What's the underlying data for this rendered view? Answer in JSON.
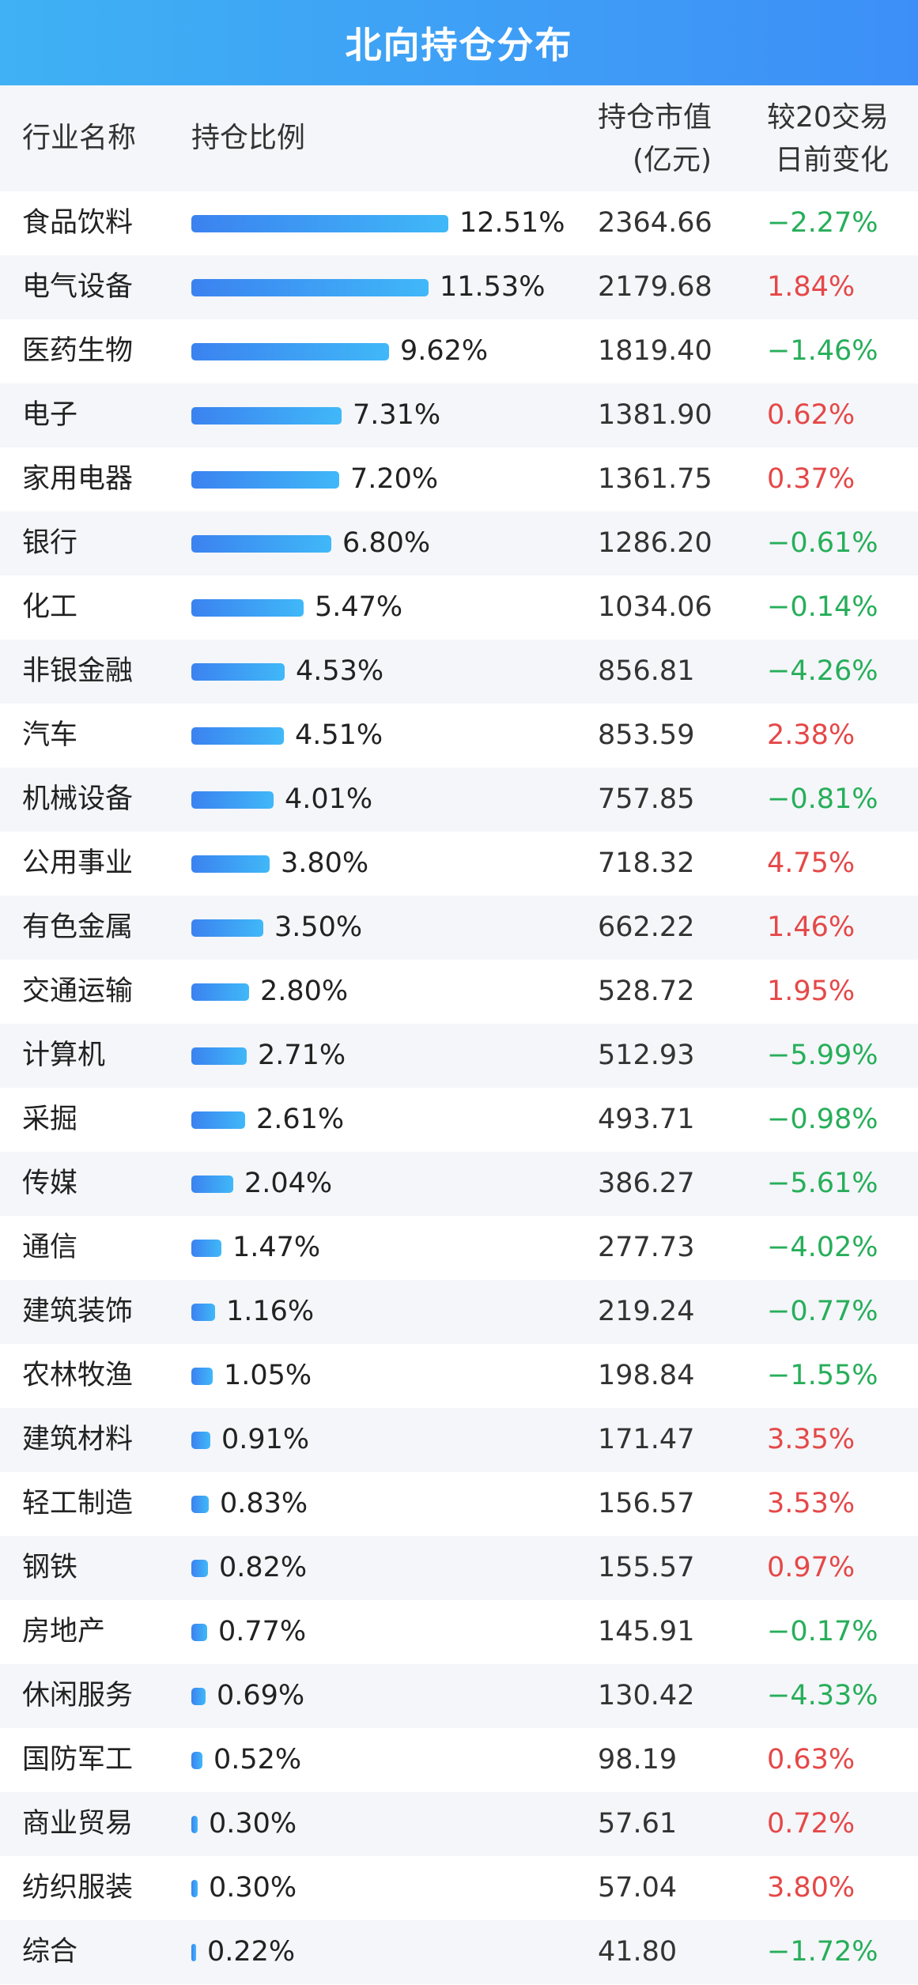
{
  "title": "北向持仓分布",
  "header": {
    "col_name": "行业名称",
    "col_ratio": "持仓比例",
    "col_value_l1": "持仓市值",
    "col_value_l2": "(亿元)",
    "col_change_l1": "较20交易",
    "col_change_l2": "日前变化"
  },
  "colors": {
    "title_bg": "#3d9af6",
    "bar": "#3b8ff4",
    "positive": "#e54848",
    "negative": "#27ae5a",
    "row_alt": "#f4f6f9"
  },
  "chart_data": {
    "type": "bar",
    "title": "北向持仓分布",
    "categories": [
      "食品饮料",
      "电气设备",
      "医药生物",
      "电子",
      "家用电器",
      "银行",
      "化工",
      "非银金融",
      "汽车",
      "机械设备",
      "公用事业",
      "有色金属",
      "交通运输",
      "计算机",
      "采掘",
      "传媒",
      "通信",
      "建筑装饰",
      "农林牧渔",
      "建筑材料",
      "轻工制造",
      "钢铁",
      "房地产",
      "休闲服务",
      "国防军工",
      "商业贸易",
      "纺织服装",
      "综合"
    ],
    "series": [
      {
        "name": "持仓比例",
        "values": [
          12.51,
          11.53,
          9.62,
          7.31,
          7.2,
          6.8,
          5.47,
          4.53,
          4.51,
          4.01,
          3.8,
          3.5,
          2.8,
          2.71,
          2.61,
          2.04,
          1.47,
          1.16,
          1.05,
          0.91,
          0.83,
          0.82,
          0.77,
          0.69,
          0.52,
          0.3,
          0.3,
          0.22
        ]
      },
      {
        "name": "持仓市值(亿元)",
        "values": [
          2364.66,
          2179.68,
          1819.4,
          1381.9,
          1361.75,
          1286.2,
          1034.06,
          856.81,
          853.59,
          757.85,
          718.32,
          662.22,
          528.72,
          512.93,
          493.71,
          386.27,
          277.73,
          219.24,
          198.84,
          171.47,
          156.57,
          155.57,
          145.91,
          130.42,
          98.19,
          57.61,
          57.04,
          41.8
        ]
      },
      {
        "name": "较20交易日前变化",
        "values": [
          -2.27,
          1.84,
          -1.46,
          0.62,
          0.37,
          -0.61,
          -0.14,
          -4.26,
          2.38,
          -0.81,
          4.75,
          1.46,
          1.95,
          -5.99,
          -0.98,
          -5.61,
          -4.02,
          -0.77,
          -1.55,
          3.35,
          3.53,
          0.97,
          -0.17,
          -4.33,
          0.63,
          0.72,
          3.8,
          -1.72
        ]
      }
    ],
    "rows": [
      {
        "name": "食品饮料",
        "ratio": "12.51%",
        "value": "2364.66",
        "change": "−2.27%"
      },
      {
        "name": "电气设备",
        "ratio": "11.53%",
        "value": "2179.68",
        "change": "1.84%"
      },
      {
        "name": "医药生物",
        "ratio": "9.62%",
        "value": "1819.40",
        "change": "−1.46%"
      },
      {
        "name": "电子",
        "ratio": "7.31%",
        "value": "1381.90",
        "change": "0.62%"
      },
      {
        "name": "家用电器",
        "ratio": "7.20%",
        "value": "1361.75",
        "change": "0.37%"
      },
      {
        "name": "银行",
        "ratio": "6.80%",
        "value": "1286.20",
        "change": "−0.61%"
      },
      {
        "name": "化工",
        "ratio": "5.47%",
        "value": "1034.06",
        "change": "−0.14%"
      },
      {
        "name": "非银金融",
        "ratio": "4.53%",
        "value": "856.81",
        "change": "−4.26%"
      },
      {
        "name": "汽车",
        "ratio": "4.51%",
        "value": "853.59",
        "change": "2.38%"
      },
      {
        "name": "机械设备",
        "ratio": "4.01%",
        "value": "757.85",
        "change": "−0.81%"
      },
      {
        "name": "公用事业",
        "ratio": "3.80%",
        "value": "718.32",
        "change": "4.75%"
      },
      {
        "name": "有色金属",
        "ratio": "3.50%",
        "value": "662.22",
        "change": "1.46%"
      },
      {
        "name": "交通运输",
        "ratio": "2.80%",
        "value": "528.72",
        "change": "1.95%"
      },
      {
        "name": "计算机",
        "ratio": "2.71%",
        "value": "512.93",
        "change": "−5.99%"
      },
      {
        "name": "采掘",
        "ratio": "2.61%",
        "value": "493.71",
        "change": "−0.98%"
      },
      {
        "name": "传媒",
        "ratio": "2.04%",
        "value": "386.27",
        "change": "−5.61%"
      },
      {
        "name": "通信",
        "ratio": "1.47%",
        "value": "277.73",
        "change": "−4.02%"
      },
      {
        "name": "建筑装饰",
        "ratio": "1.16%",
        "value": "219.24",
        "change": "−0.77%"
      },
      {
        "name": "农林牧渔",
        "ratio": "1.05%",
        "value": "198.84",
        "change": "−1.55%"
      },
      {
        "name": "建筑材料",
        "ratio": "0.91%",
        "value": "171.47",
        "change": "3.35%"
      },
      {
        "name": "轻工制造",
        "ratio": "0.83%",
        "value": "156.57",
        "change": "3.53%"
      },
      {
        "name": "钢铁",
        "ratio": "0.82%",
        "value": "155.57",
        "change": "0.97%"
      },
      {
        "name": "房地产",
        "ratio": "0.77%",
        "value": "145.91",
        "change": "−0.17%"
      },
      {
        "name": "休闲服务",
        "ratio": "0.69%",
        "value": "130.42",
        "change": "−4.33%"
      },
      {
        "name": "国防军工",
        "ratio": "0.52%",
        "value": "98.19",
        "change": "0.63%"
      },
      {
        "name": "商业贸易",
        "ratio": "0.30%",
        "value": "57.61",
        "change": "0.72%"
      },
      {
        "name": "纺织服装",
        "ratio": "0.30%",
        "value": "57.04",
        "change": "3.80%"
      },
      {
        "name": "综合",
        "ratio": "0.22%",
        "value": "41.80",
        "change": "−1.72%"
      }
    ]
  }
}
